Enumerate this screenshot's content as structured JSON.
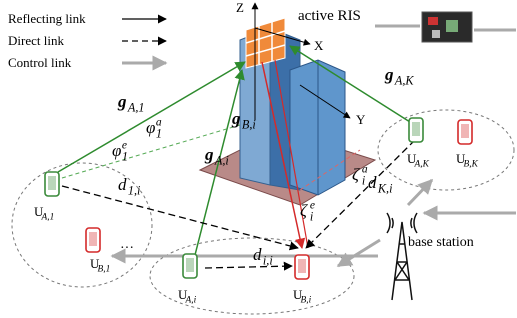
{
  "legend": [
    {
      "label": "Reflecting link"
    },
    {
      "label": "Direct link"
    },
    {
      "label": "Control link"
    }
  ],
  "ris_label": "active RIS",
  "axes": {
    "z": "Z",
    "x": "X",
    "y": "Y"
  },
  "symbols": [
    {
      "main": "g",
      "sub": "A,1"
    },
    {
      "main": "g",
      "sub": "A,K"
    },
    {
      "main": "g",
      "sub": "B,i"
    },
    {
      "main": "g",
      "sub": "A,i"
    },
    {
      "main": "d",
      "sub": "1,i"
    },
    {
      "main": "d",
      "sub": "K,i"
    },
    {
      "main": "d",
      "sub": "i,i"
    },
    {
      "main": "φ",
      "sub": "1",
      "sup": "a"
    },
    {
      "main": "φ",
      "sub": "1",
      "sup": "e"
    },
    {
      "main": "ζ",
      "sub": "i",
      "sup": "a"
    },
    {
      "main": "ζ",
      "sub": "i",
      "sup": "e"
    }
  ],
  "users": [
    {
      "main": "U",
      "sub": "A,1",
      "color": "#3a8a3a"
    },
    {
      "main": "U",
      "sub": "B,1",
      "color": "#d42a2a"
    },
    {
      "main": "U",
      "sub": "A,i",
      "color": "#3a8a3a"
    },
    {
      "main": "U",
      "sub": "B,i",
      "color": "#d42a2a"
    },
    {
      "main": "U",
      "sub": "A,K",
      "color": "#3a8a3a"
    },
    {
      "main": "U",
      "sub": "B,K",
      "color": "#d42a2a"
    }
  ],
  "base_station": "base station",
  "ellipsis": "···"
}
